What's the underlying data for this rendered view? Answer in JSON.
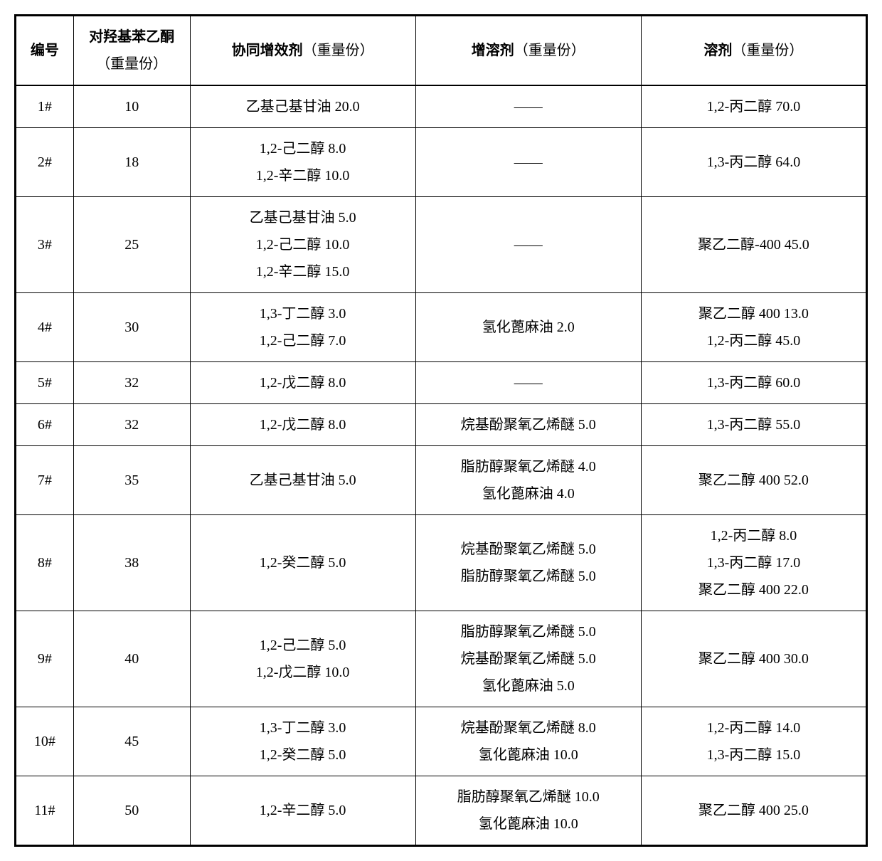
{
  "table": {
    "columns": [
      {
        "label_bold": "编号",
        "label_normal": "",
        "width_class": "col-id"
      },
      {
        "label_bold": "对羟基苯乙酮",
        "label_normal": "（重量份）",
        "width_class": "col-main"
      },
      {
        "label_bold": "协同增效剂",
        "label_normal": "（重量份）",
        "width_class": "col-synergist"
      },
      {
        "label_bold": "增溶剂",
        "label_normal": "（重量份）",
        "width_class": "col-solubilizer"
      },
      {
        "label_bold": "溶剂",
        "label_normal": "（重量份）",
        "width_class": "col-solvent"
      }
    ],
    "rows": [
      {
        "id": "1#",
        "main": "10",
        "synergist": [
          "乙基己基甘油 20.0"
        ],
        "solubilizer": [
          "——"
        ],
        "solvent": [
          "1,2-丙二醇 70.0"
        ]
      },
      {
        "id": "2#",
        "main": "18",
        "synergist": [
          "1,2-己二醇 8.0",
          "1,2-辛二醇 10.0"
        ],
        "solubilizer": [
          "——"
        ],
        "solvent": [
          "1,3-丙二醇 64.0"
        ]
      },
      {
        "id": "3#",
        "main": "25",
        "synergist": [
          "乙基己基甘油 5.0",
          "1,2-己二醇 10.0",
          "1,2-辛二醇 15.0"
        ],
        "solubilizer": [
          "——"
        ],
        "solvent": [
          "聚乙二醇-400 45.0"
        ]
      },
      {
        "id": "4#",
        "main": "30",
        "synergist": [
          "1,3-丁二醇 3.0",
          "1,2-己二醇 7.0"
        ],
        "solubilizer": [
          "氢化蓖麻油 2.0"
        ],
        "solvent": [
          "聚乙二醇 400 13.0",
          "1,2-丙二醇 45.0"
        ]
      },
      {
        "id": "5#",
        "main": "32",
        "synergist": [
          "1,2-戊二醇 8.0"
        ],
        "solubilizer": [
          "——"
        ],
        "solvent": [
          "1,3-丙二醇 60.0"
        ]
      },
      {
        "id": "6#",
        "main": "32",
        "synergist": [
          "1,2-戊二醇 8.0"
        ],
        "solubilizer": [
          "烷基酚聚氧乙烯醚 5.0"
        ],
        "solvent": [
          "1,3-丙二醇 55.0"
        ]
      },
      {
        "id": "7#",
        "main": "35",
        "synergist": [
          "乙基己基甘油 5.0"
        ],
        "solubilizer": [
          "脂肪醇聚氧乙烯醚 4.0",
          "氢化蓖麻油 4.0"
        ],
        "solvent": [
          "聚乙二醇 400 52.0"
        ]
      },
      {
        "id": "8#",
        "main": "38",
        "synergist": [
          "1,2-癸二醇 5.0"
        ],
        "solubilizer": [
          "烷基酚聚氧乙烯醚 5.0",
          "脂肪醇聚氧乙烯醚 5.0"
        ],
        "solvent": [
          "1,2-丙二醇 8.0",
          "1,3-丙二醇 17.0",
          "聚乙二醇 400 22.0"
        ]
      },
      {
        "id": "9#",
        "main": "40",
        "synergist": [
          "1,2-己二醇 5.0",
          "1,2-戊二醇 10.0"
        ],
        "solubilizer": [
          "脂肪醇聚氧乙烯醚 5.0",
          "烷基酚聚氧乙烯醚 5.0",
          "氢化蓖麻油 5.0"
        ],
        "solvent": [
          "聚乙二醇 400 30.0"
        ]
      },
      {
        "id": "10#",
        "main": "45",
        "synergist": [
          "1,3-丁二醇 3.0",
          "1,2-癸二醇 5.0"
        ],
        "solubilizer": [
          "烷基酚聚氧乙烯醚 8.0",
          "氢化蓖麻油 10.0"
        ],
        "solvent": [
          "1,2-丙二醇 14.0",
          "1,3-丙二醇 15.0"
        ]
      },
      {
        "id": "11#",
        "main": "50",
        "synergist": [
          "1,2-辛二醇 5.0"
        ],
        "solubilizer": [
          "脂肪醇聚氧乙烯醚 10.0",
          "氢化蓖麻油 10.0"
        ],
        "solvent": [
          "聚乙二醇 400 25.0"
        ]
      }
    ]
  },
  "styling": {
    "background_color": "#ffffff",
    "border_color": "#000000",
    "outer_border_width": 3,
    "inner_border_width": 1,
    "header_bottom_border_width": 2,
    "font_family": "SimSun",
    "font_size_pt": 15,
    "line_height": 1.9,
    "text_align": "center"
  }
}
